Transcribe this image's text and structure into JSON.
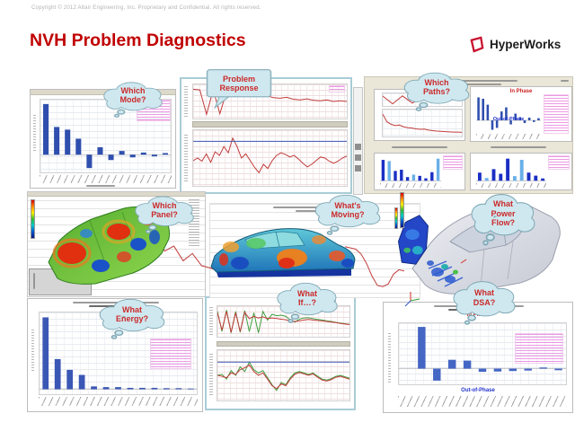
{
  "slide": {
    "copyright": "Copyright © 2012 Altair Engineering, Inc. Proprietary and Confidential. All rights reserved.",
    "title": "NVH Problem Diagnostics",
    "logo_text": "HyperWorks",
    "title_color": "#C00000",
    "logo_red": "#C8102E",
    "bubble_fill": "#CFE8F0",
    "bubble_text_color": "#CC2A2A",
    "bar_blue": "#3A57B5",
    "bar_dark_blue": "#1B2FC4",
    "bar_light_blue": "#6AB0E8",
    "line_red": "#C23B3B",
    "line_green": "#3F9E3F"
  },
  "bubbles": [
    {
      "id": "which-mode",
      "label": "Which Mode?"
    },
    {
      "id": "problem-response",
      "label": "Problem Response"
    },
    {
      "id": "which-paths",
      "label": "Which Paths?"
    },
    {
      "id": "which-panel",
      "label": "Which Panel?"
    },
    {
      "id": "whats-moving",
      "label": "What's Moving?"
    },
    {
      "id": "what-power-flow",
      "label": "What Power Flow?"
    },
    {
      "id": "what-energy",
      "label": "What Energy?"
    },
    {
      "id": "what-if",
      "label": "What If…?"
    },
    {
      "id": "what-dsa",
      "label": "What DSA?"
    }
  ],
  "chart_data": [
    {
      "name": "mode_participation_bars",
      "type": "bar",
      "color": "#2F4FAE",
      "values": [
        0.95,
        0.52,
        0.47,
        0.3,
        -0.25,
        0.14,
        -0.1,
        0.07,
        -0.05,
        0.04,
        -0.03,
        0.03
      ]
    },
    {
      "name": "problem_response_overview",
      "type": "line",
      "series": [
        {
          "color": "#C23B3B",
          "y": [
            0.88,
            0.86,
            0.1,
            0.86,
            0.12,
            0.8,
            0.76,
            0.72,
            0.74,
            0.7,
            0.66,
            0.68,
            0.62,
            0.6,
            0.63,
            0.57,
            0.55,
            0.58,
            0.54,
            0.52,
            0.55,
            0.5,
            0.52,
            0.5
          ]
        }
      ]
    },
    {
      "name": "problem_response_main",
      "type": "line",
      "hline": 0.82,
      "hline_color": "#3A57B5",
      "series": [
        {
          "color": "#C23B3B",
          "y": [
            0.45,
            0.5,
            0.44,
            0.58,
            0.42,
            0.62,
            0.55,
            0.72,
            0.6,
            0.88,
            0.72,
            0.5,
            0.58,
            0.45,
            0.32,
            0.22,
            0.38,
            0.3,
            0.45,
            0.55,
            0.6,
            0.57,
            0.52,
            0.55,
            0.48,
            0.4,
            0.33,
            0.38,
            0.45,
            0.52,
            0.5,
            0.44,
            0.4,
            0.44,
            0.5,
            0.54
          ]
        }
      ]
    },
    {
      "name": "paths_overview_top",
      "type": "line",
      "series": [
        {
          "color": "#C23B3B",
          "y": [
            0.8,
            0.15,
            0.82,
            0.2,
            0.75,
            0.72,
            0.7,
            0.72,
            0.7
          ]
        }
      ]
    },
    {
      "name": "paths_overview_main",
      "type": "line",
      "series": [
        {
          "color": "#C23B3B",
          "y": [
            0.85,
            0.55,
            0.45,
            0.4,
            0.42,
            0.35,
            0.32,
            0.3,
            0.27,
            0.25,
            0.26,
            0.22,
            0.2,
            0.18,
            0.17,
            0.16,
            0.15,
            0.14,
            0.14,
            0.13
          ]
        }
      ]
    },
    {
      "name": "paths_in_phase_bars",
      "type": "bar",
      "label_top": "In Phase",
      "label_bottom": "Out-of-Phase",
      "color": "#2F4FAE",
      "values": [
        0.85,
        0.8,
        0.58,
        -0.35,
        -0.28,
        0.33,
        0.48,
        -0.15,
        0.25,
        0.12,
        -0.1,
        0.1,
        -0.06,
        0.08
      ]
    },
    {
      "name": "paths_contribution_a",
      "type": "bar",
      "values": [
        0.85,
        0.8,
        0.4,
        0.45,
        0.15,
        0.25,
        0.2,
        0.1,
        0.35,
        0.9
      ],
      "colors": [
        "#1B2FC4",
        "#6AB0E8",
        "#1B2FC4",
        "#1B2FC4",
        "#1B2FC4",
        "#6AB0E8",
        "#1B2FC4",
        "#1B2FC4",
        "#1B2FC4",
        "#6AB0E8"
      ]
    },
    {
      "name": "paths_contribution_b",
      "type": "bar",
      "values": [
        0.35,
        0.12,
        0.5,
        0.3,
        0.95,
        0.2,
        0.9,
        0.35,
        0.22,
        0.1
      ],
      "colors": [
        "#1B2FC4",
        "#6AB0E8",
        "#1B2FC4",
        "#1B2FC4",
        "#1B2FC4",
        "#6AB0E8",
        "#6AB0E8",
        "#1B2FC4",
        "#1B2FC4",
        "#1B2FC4"
      ]
    },
    {
      "name": "panel_energy_pareto_bars",
      "type": "bar",
      "color": "#3A57B5",
      "values": [
        1.0,
        0.42,
        0.27,
        0.2,
        0.04,
        0.03,
        0.03,
        0.02,
        0.02,
        0.02,
        0.015,
        0.015,
        0.01
      ]
    },
    {
      "name": "whatif_overview",
      "type": "line",
      "series": [
        {
          "color": "#3F9E3F",
          "y": [
            0.85,
            0.15,
            0.9,
            0.1,
            0.85,
            0.12,
            0.88,
            0.15,
            0.8,
            0.1,
            0.85,
            0.55,
            0.75,
            0.7,
            0.72,
            0.68,
            0.55,
            0.48,
            0.58,
            0.62,
            0.63,
            0.6,
            0.57,
            0.55,
            0.52,
            0.5,
            0.47,
            0.44,
            0.42,
            0.4
          ]
        },
        {
          "color": "#C23B3B",
          "y": [
            0.8,
            0.2,
            0.85,
            0.12,
            0.8,
            0.15,
            0.82,
            0.6,
            0.68,
            0.62,
            0.66,
            0.6,
            0.62,
            0.6,
            0.58,
            0.56,
            0.52,
            0.5,
            0.52,
            0.55,
            0.57,
            0.55,
            0.53,
            0.52,
            0.5,
            0.48,
            0.46,
            0.43,
            0.41,
            0.39
          ]
        }
      ]
    },
    {
      "name": "whatif_main",
      "type": "line",
      "hline": 0.78,
      "hline_color": "#3A57B5",
      "series": [
        {
          "color": "#3F9E3F",
          "y": [
            0.5,
            0.52,
            0.42,
            0.6,
            0.5,
            0.68,
            0.58,
            0.78,
            0.62,
            0.55,
            0.6,
            0.45,
            0.3,
            0.18,
            0.35,
            0.3,
            0.45,
            0.55,
            0.58,
            0.55,
            0.52,
            0.55,
            0.48,
            0.42,
            0.4,
            0.43,
            0.48,
            0.5,
            0.47,
            0.44
          ]
        },
        {
          "color": "#C23B3B",
          "y": [
            0.5,
            0.48,
            0.45,
            0.55,
            0.52,
            0.62,
            0.66,
            0.72,
            0.58,
            0.5,
            0.55,
            0.42,
            0.28,
            0.22,
            0.32,
            0.28,
            0.42,
            0.52,
            0.56,
            0.53,
            0.5,
            0.53,
            0.46,
            0.4,
            0.38,
            0.41,
            0.46,
            0.48,
            0.45,
            0.42
          ]
        }
      ]
    },
    {
      "name": "dsa_bars",
      "type": "bar",
      "label_top": "In Phase",
      "label_bottom": "Out-of-Phase",
      "color": "#4466C4",
      "values": [
        0,
        2.6,
        -0.75,
        0.55,
        0.5,
        -0.2,
        -0.18,
        -0.15,
        -0.12,
        0.07,
        -0.1
      ]
    },
    {
      "name": "background_curve_panel",
      "type": "line",
      "series": [
        {
          "color": "#C23B3B",
          "y": [
            0.85,
            0.6,
            0.7,
            0.4,
            0.55,
            0.3,
            0.25,
            0.18
          ]
        }
      ]
    },
    {
      "name": "background_curve_center",
      "type": "line",
      "series": [
        {
          "color": "#C23B3B",
          "y": [
            0.72,
            0.7,
            0.68,
            0.6,
            0.45,
            0.25,
            0.1,
            0.08,
            0.12,
            0.28,
            0.35,
            0.33
          ]
        }
      ]
    }
  ]
}
